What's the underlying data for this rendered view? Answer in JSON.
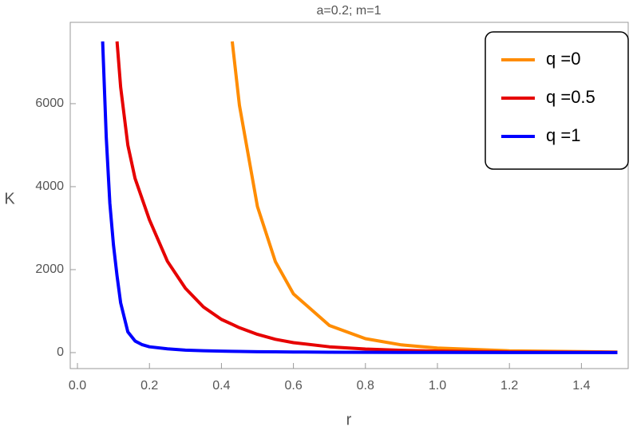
{
  "chart_data": {
    "type": "line",
    "title": "a=0.2; m=1",
    "x_label": "r",
    "y_label": "K",
    "x": [
      0.07,
      0.08,
      0.09,
      0.1,
      0.11,
      0.12,
      0.14,
      0.16,
      0.18,
      0.2,
      0.25,
      0.3,
      0.35,
      0.4,
      0.43,
      0.45,
      0.5,
      0.55,
      0.6,
      0.7,
      0.8,
      0.9,
      1.0,
      1.2,
      1.5
    ],
    "series": [
      {
        "name": "q =0",
        "color": "#ff8c00",
        "values": [
          null,
          null,
          null,
          null,
          null,
          null,
          null,
          null,
          null,
          null,
          null,
          null,
          null,
          null,
          7500,
          5960,
          3520,
          2190,
          1415,
          654,
          336,
          186,
          110,
          44,
          14
        ]
      },
      {
        "name": "q =0.5",
        "color": "#e60000",
        "values": [
          null,
          null,
          null,
          null,
          7500,
          6400,
          5000,
          4200,
          3700,
          3200,
          2200,
          1550,
          1100,
          800,
          680,
          600,
          440,
          320,
          240,
          140,
          85,
          55,
          35,
          15,
          5
        ]
      },
      {
        "name": "q =1",
        "color": "#0000ff",
        "values": [
          7500,
          5200,
          3600,
          2600,
          1850,
          1200,
          500,
          280,
          190,
          140,
          90,
          60,
          45,
          35,
          30,
          28,
          22,
          18,
          15,
          10,
          7,
          5,
          4,
          2,
          1
        ]
      }
    ],
    "xlim": [
      -0.02,
      1.53
    ],
    "ylim": [
      -385,
      7960
    ],
    "xticks": [
      {
        "value": 0,
        "label": "0.0"
      },
      0.2,
      0.4,
      0.6,
      0.8,
      {
        "value": 1,
        "label": "1.0"
      },
      1.2,
      1.4
    ],
    "yticks": [
      0,
      2000,
      4000,
      6000
    ],
    "legend": "upper right",
    "grid": false
  }
}
